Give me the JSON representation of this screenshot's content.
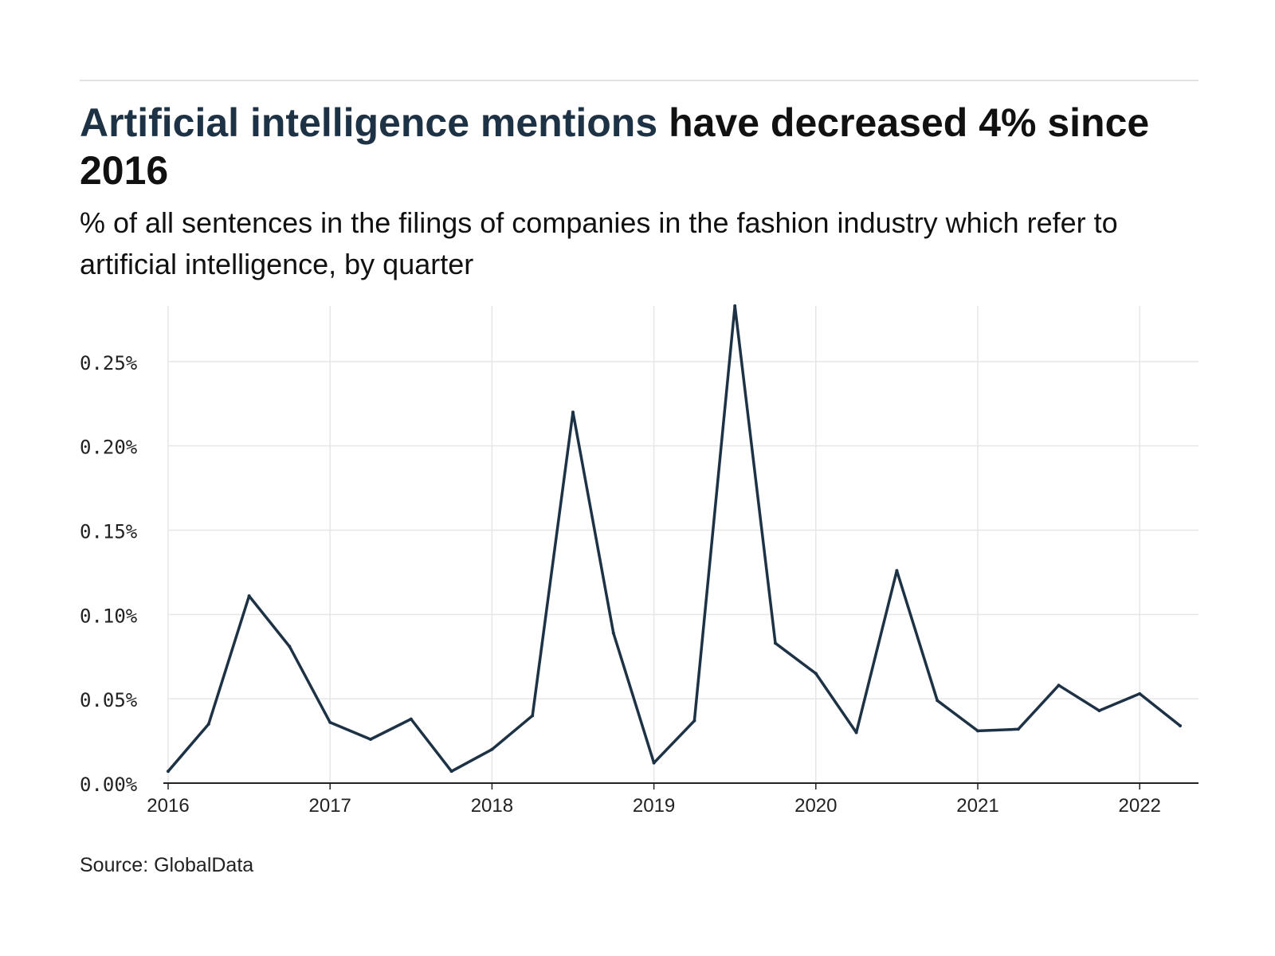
{
  "header": {
    "title_highlight": "Artificial intelligence mentions",
    "title_rest": "have decreased 4% since 2016",
    "subtitle": "% of all sentences in the filings of companies in the fashion industry which refer to artificial intelligence, by quarter"
  },
  "footer": {
    "source": "Source: GlobalData"
  },
  "colors": {
    "line": "#1e3246",
    "grid": "#e6e6e6",
    "axis": "#222222",
    "title_highlight": "#1e3246"
  },
  "chart_data": {
    "type": "line",
    "title": "Artificial intelligence mentions have decreased 4% since 2016",
    "xlabel": "",
    "ylabel": "",
    "grid": true,
    "legend": "none",
    "x": [
      "2016-Q1",
      "2016-Q2",
      "2016-Q3",
      "2016-Q4",
      "2017-Q1",
      "2017-Q2",
      "2017-Q3",
      "2017-Q4",
      "2018-Q1",
      "2018-Q2",
      "2018-Q3",
      "2018-Q4",
      "2019-Q1",
      "2019-Q2",
      "2019-Q3",
      "2019-Q4",
      "2020-Q1",
      "2020-Q2",
      "2020-Q3",
      "2020-Q4",
      "2021-Q1",
      "2021-Q2",
      "2021-Q3",
      "2021-Q4",
      "2022-Q1",
      "2022-Q2"
    ],
    "series": [
      {
        "name": "",
        "values": [
          0.007,
          0.035,
          0.111,
          0.081,
          0.036,
          0.026,
          0.038,
          0.007,
          0.02,
          0.04,
          0.22,
          0.089,
          0.012,
          0.037,
          0.283,
          0.083,
          0.065,
          0.03,
          0.126,
          0.049,
          0.031,
          0.032,
          0.058,
          0.043,
          0.053,
          0.034
        ]
      }
    ],
    "x_ticks": [
      "2016",
      "2017",
      "2018",
      "2019",
      "2020",
      "2021",
      "2022"
    ],
    "y_ticks": [
      0,
      0.05,
      0.1,
      0.15,
      0.2,
      0.25
    ],
    "y_tick_labels": [
      "0.00%",
      "0.05%",
      "0.10%",
      "0.15%",
      "0.20%",
      "0.25%"
    ],
    "ylim": [
      0,
      0.283
    ]
  }
}
